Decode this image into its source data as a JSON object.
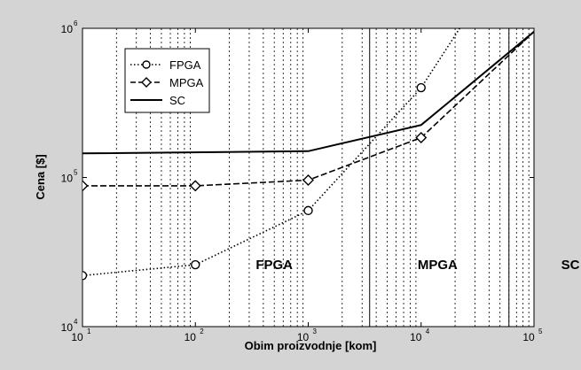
{
  "chart_data": {
    "type": "line",
    "title": "",
    "xlabel": "Obim proizvodnje [kom]",
    "ylabel": "Cena [$]",
    "xscale": "log",
    "yscale": "log",
    "xlim": [
      10,
      100000
    ],
    "ylim": [
      10000,
      1000000
    ],
    "grid": "vertical minor dotted",
    "x_ticks": [
      {
        "value": 10,
        "base": "10",
        "exp": "1"
      },
      {
        "value": 100,
        "base": "10",
        "exp": "2"
      },
      {
        "value": 1000,
        "base": "10",
        "exp": "3"
      },
      {
        "value": 10000,
        "base": "10",
        "exp": "4"
      },
      {
        "value": 100000,
        "base": "10",
        "exp": "5"
      }
    ],
    "y_ticks": [
      {
        "value": 10000,
        "base": "10",
        "exp": "4"
      },
      {
        "value": 100000,
        "base": "10",
        "exp": "5"
      },
      {
        "value": 1000000,
        "base": "10",
        "exp": "6"
      }
    ],
    "legend_position": "top-left",
    "series": [
      {
        "name": "FPGA",
        "style": "dotted",
        "marker": "circle",
        "x": [
          10,
          100,
          1000,
          10000,
          22000
        ],
        "y": [
          22000,
          26000,
          60000,
          400000,
          1000000
        ],
        "marker_x": [
          10,
          100,
          1000,
          10000
        ]
      },
      {
        "name": "MPGA",
        "style": "dashed",
        "marker": "diamond",
        "x": [
          10,
          100,
          1000,
          10000,
          100000
        ],
        "y": [
          88000,
          88000,
          96000,
          185000,
          950000
        ],
        "marker_x": [
          10,
          100,
          1000,
          10000
        ]
      },
      {
        "name": "SC",
        "style": "solid",
        "marker": "none",
        "x": [
          10,
          1000,
          10000,
          100000
        ],
        "y": [
          145000,
          150000,
          225000,
          950000
        ],
        "marker_x": []
      }
    ],
    "region_boundaries": [
      3500,
      60000
    ],
    "region_labels": [
      {
        "text": "FPGA",
        "x": 500,
        "y": 26000
      },
      {
        "text": "MPGA",
        "x": 14000,
        "y": 26000
      },
      {
        "text": "SC",
        "x": 210000,
        "y": 26000
      }
    ]
  }
}
